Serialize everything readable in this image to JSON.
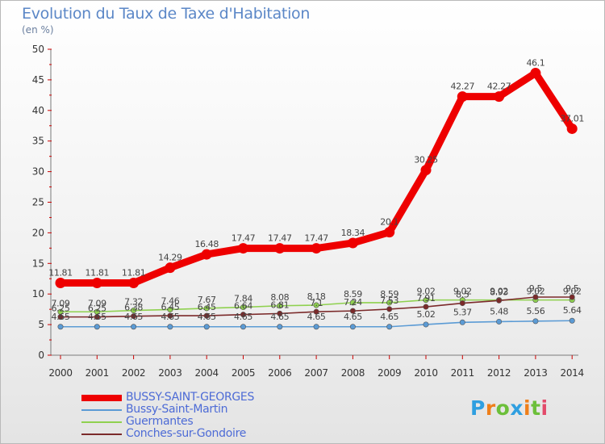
{
  "title": "Evolution du Taux de Taxe d'Habitation",
  "subtitle": "(en %)",
  "logo": {
    "letters": [
      "P",
      "r",
      "o",
      "x",
      "i",
      "t",
      "i"
    ],
    "colors": [
      "#2f9fe0",
      "#ef7f1a",
      "#6cbf3a",
      "#2f9fe0",
      "#ef7f1a",
      "#6cbf3a",
      "#e34a6a"
    ]
  },
  "chart_data": {
    "type": "line",
    "title": "Evolution du Taux de Taxe d'Habitation",
    "ylabel": "(en %)",
    "x": [
      "2000",
      "2001",
      "2002",
      "2003",
      "2004",
      "2005",
      "2006",
      "2007",
      "2008",
      "2009",
      "2010",
      "2011",
      "2012",
      "2013",
      "2014"
    ],
    "ylim": [
      0,
      50
    ],
    "yticks": [
      "0",
      "5",
      "10",
      "15",
      "20",
      "25",
      "30",
      "35",
      "40",
      "45",
      "50"
    ],
    "grid": false,
    "legend_position": "bottom-left",
    "series": [
      {
        "name": "BUSSY-SAINT-GEORGES",
        "color": "#ee0000",
        "values": [
          11.81,
          11.81,
          11.81,
          14.29,
          16.48,
          17.47,
          17.47,
          17.47,
          18.34,
          20.1,
          30.25,
          42.27,
          42.27,
          46.1,
          37.01
        ],
        "labels": [
          "11.81",
          "11.81",
          "11.81",
          "14.29",
          "16.48",
          "17.47",
          "17.47",
          "17.47",
          "18.34",
          "20.1",
          "30.25",
          "42.27",
          "42.27",
          "46.1",
          "37.01"
        ]
      },
      {
        "name": "Bussy-Saint-Martin",
        "color": "#5b9bd5",
        "values": [
          4.65,
          4.65,
          4.65,
          4.65,
          4.65,
          4.65,
          4.65,
          4.65,
          4.65,
          4.65,
          5.02,
          5.37,
          5.48,
          5.56,
          5.64
        ],
        "labels": [
          "4.65",
          "4.65",
          "4.65",
          "4.65",
          "4.65",
          "4.65",
          "4.65",
          "4.65",
          "4.65",
          "4.65",
          "5.02",
          "5.37",
          "5.48",
          "5.56",
          "5.64"
        ]
      },
      {
        "name": "Guermantes",
        "color": "#8fd14f",
        "values": [
          7.09,
          7.09,
          7.32,
          7.46,
          7.67,
          7.84,
          8.08,
          8.18,
          8.59,
          8.59,
          9.02,
          9.02,
          9.02,
          9.02,
          9.02
        ],
        "labels": [
          "7.09",
          "7.09",
          "7.32",
          "7.46",
          "7.67",
          "7.84",
          "8.08",
          "8.18",
          "8.59",
          "8.59",
          "9.02",
          "9.02",
          "9.02",
          "9.02",
          "9.02"
        ]
      },
      {
        "name": "Conches-sur-Gondoire",
        "color": "#7b2a2a",
        "values": [
          6.25,
          6.25,
          6.38,
          6.45,
          6.45,
          6.64,
          6.81,
          7.1,
          7.24,
          7.53,
          7.91,
          8.5,
          8.93,
          9.5,
          9.5
        ],
        "labels": [
          "6.25",
          "6.25",
          "6.38",
          "6.45",
          "6.45",
          "6.64",
          "6.81",
          "7.1",
          "7.24",
          "7.53",
          "7.91",
          "8.5",
          "8.93",
          "9.5",
          "9.5"
        ]
      }
    ]
  }
}
